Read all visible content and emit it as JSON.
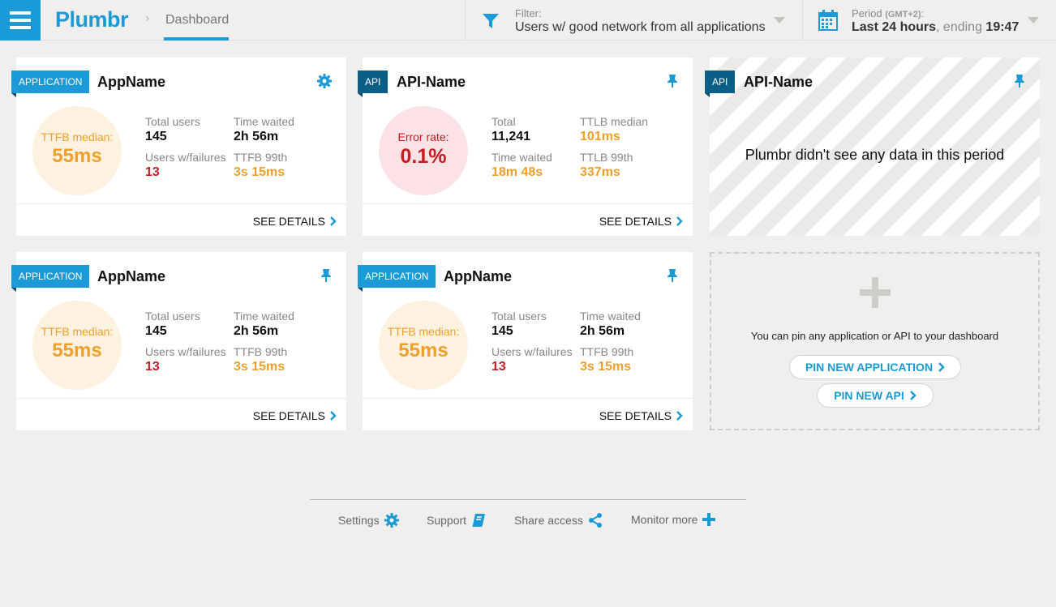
{
  "header": {
    "logo": "Plumbr",
    "breadcrumb_sep": "›",
    "breadcrumb": "Dashboard",
    "filter": {
      "label": "Filter:",
      "value": "Users w/ good network from all applications"
    },
    "period": {
      "label": "Period",
      "tz": "(GMT+2)",
      "label_end": ":",
      "value_bold": "Last 24 hours",
      "value_mid": ", ending ",
      "time": "19:47"
    }
  },
  "cards": [
    {
      "tag": "APPLICATION",
      "title": "AppName",
      "icon": "gear-icon",
      "circle_label": "TTFB median:",
      "circle_value": "55ms",
      "m1_label": "Total users",
      "m1_value": "145",
      "m2_label": "Time waited",
      "m2_value": "2h 56m",
      "m3_label": "Users w/failures",
      "m3_value": "13",
      "m4_label": "TTFB 99th",
      "m4_value": "3s 15ms",
      "footer": "SEE DETAILS"
    },
    {
      "tag": "API",
      "title": "API-Name",
      "icon": "pin-icon",
      "circle_label": "Error rate:",
      "circle_value": "0.1%",
      "m1_label": "Total",
      "m1_value": "11,241",
      "m2_label": "TTLB median",
      "m2_value": "101ms",
      "m3_label": "Time waited",
      "m3_value": "18m 48s",
      "m4_label": "TTLB 99th",
      "m4_value": "337ms",
      "footer": "SEE DETAILS"
    },
    {
      "tag": "API",
      "title": "API-Name",
      "icon": "pin-icon",
      "empty_message": "Plumbr didn't see any data in this period"
    },
    {
      "tag": "APPLICATION",
      "title": "AppName",
      "icon": "pin-icon",
      "circle_label": "TTFB median:",
      "circle_value": "55ms",
      "m1_label": "Total users",
      "m1_value": "145",
      "m2_label": "Time waited",
      "m2_value": "2h 56m",
      "m3_label": "Users w/failures",
      "m3_value": "13",
      "m4_label": "TTFB 99th",
      "m4_value": "3s 15ms",
      "footer": "SEE DETAILS"
    },
    {
      "tag": "APPLICATION",
      "title": "AppName",
      "icon": "pin-icon",
      "circle_label": "TTFB median:",
      "circle_value": "55ms",
      "m1_label": "Total users",
      "m1_value": "145",
      "m2_label": "Time waited",
      "m2_value": "2h 56m",
      "m3_label": "Users w/failures",
      "m3_value": "13",
      "m4_label": "TTFB 99th",
      "m4_value": "3s 15ms",
      "footer": "SEE DETAILS"
    }
  ],
  "pin_panel": {
    "message": "You can pin any application or API to your dashboard",
    "pin_app": "PIN NEW APPLICATION",
    "pin_api": "PIN NEW API"
  },
  "footer": {
    "settings": "Settings",
    "support": "Support",
    "share": "Share access",
    "monitor": "Monitor more"
  },
  "colors": {
    "accent": "#1a9bd7",
    "orange": "#f0a02a",
    "red": "#c81b22",
    "api_tag": "#0b5e86"
  }
}
